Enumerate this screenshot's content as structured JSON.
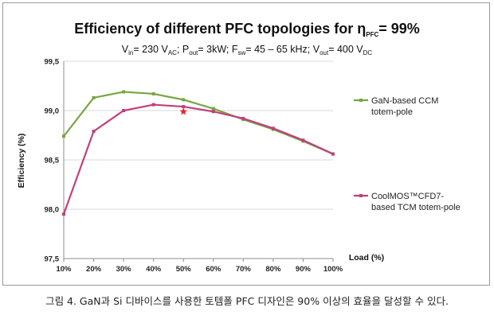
{
  "chart_data": {
    "type": "line",
    "title": "Efficiency of different PFC topologies for η",
    "title_sub": "PFC",
    "title_suffix": "= 99%",
    "subtitle": {
      "vin_prefix": "V",
      "vin_sub": "in",
      "vin_value": "= 230 V",
      "vin_unit_sub": "AC",
      "pout_prefix": "; P",
      "pout_sub": "out",
      "pout_value": "= 3kW; F",
      "fsw_sub": "sw",
      "fsw_value": "= 45 – 65 kHz; V",
      "vout_sub": "out",
      "vout_value": "= 400 V",
      "vout_unit_sub": "DC"
    },
    "xlabel": "Load (%)",
    "ylabel": "Efficiency (%)",
    "categories": [
      "10%",
      "20%",
      "30%",
      "40%",
      "50%",
      "60%",
      "70%",
      "80%",
      "90%",
      "100%"
    ],
    "y_ticks": [
      "97,5",
      "98,0",
      "98,5",
      "99,0",
      "99,5"
    ],
    "ylim": [
      97.5,
      99.5
    ],
    "series": [
      {
        "name": "GaN-based CCM totem-pole",
        "legend_lines": [
          "GaN-based CCM",
          "totem-pole"
        ],
        "color": "#77a542",
        "values": [
          98.74,
          99.13,
          99.19,
          99.17,
          99.11,
          99.02,
          98.91,
          98.81,
          98.69,
          98.56
        ]
      },
      {
        "name": "CoolMOS™CFD7-based TCM totem-pole",
        "legend_lines": [
          "CoolMOS™CFD7-",
          "based TCM totem-pole"
        ],
        "color": "#c0407c",
        "values": [
          97.95,
          98.79,
          99.0,
          99.06,
          99.04,
          98.99,
          98.92,
          98.82,
          98.7,
          98.56
        ]
      }
    ],
    "annotation": {
      "x": "50%",
      "y": 98.99,
      "marker": "star",
      "color": "#e8232b"
    },
    "grid": true
  },
  "caption": "그림 4. GaN과 Si 디바이스를 사용한 토템폴 PFC 디자인은 90% 이상의 효율을 달성할 수 있다."
}
